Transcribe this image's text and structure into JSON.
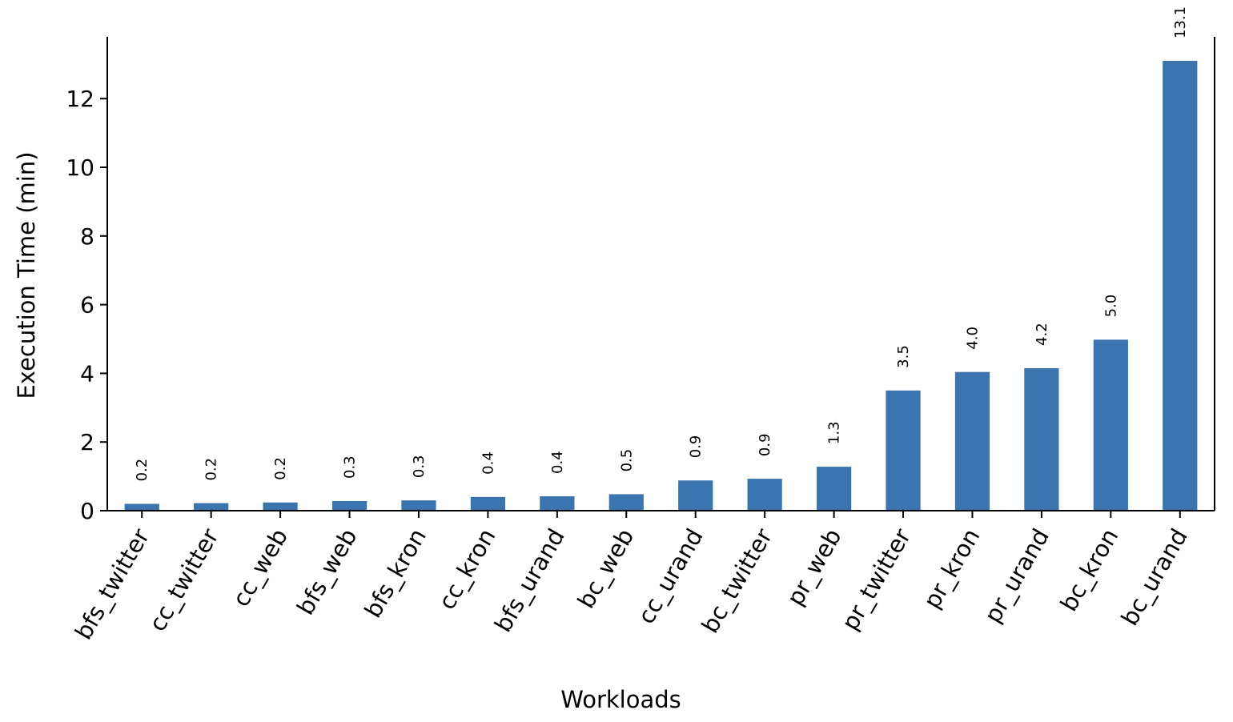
{
  "chart_data": {
    "type": "bar",
    "xlabel": "Workloads",
    "ylabel": "Execution Time (min)",
    "categories": [
      "bfs_twitter",
      "cc_twitter",
      "cc_web",
      "bfs_web",
      "bfs_kron",
      "cc_kron",
      "bfs_urand",
      "bc_web",
      "cc_urand",
      "bc_twitter",
      "pr_web",
      "pr_twitter",
      "pr_kron",
      "pr_urand",
      "bc_kron",
      "bc_urand"
    ],
    "values": [
      0.2,
      0.22,
      0.24,
      0.28,
      0.3,
      0.4,
      0.42,
      0.48,
      0.88,
      0.93,
      1.28,
      3.5,
      4.04,
      4.15,
      4.98,
      13.1
    ],
    "data_labels": [
      "0.2",
      "0.2",
      "0.2",
      "0.3",
      "0.3",
      "0.4",
      "0.4",
      "0.5",
      "0.9",
      "0.9",
      "1.3",
      "3.5",
      "4.0",
      "4.2",
      "5.0",
      "13.1"
    ],
    "yticks": [
      0,
      2,
      4,
      6,
      8,
      10,
      12
    ],
    "ylim": [
      0,
      13.8
    ],
    "grid": false,
    "legend": "none",
    "bar_color": "#3b75af"
  }
}
